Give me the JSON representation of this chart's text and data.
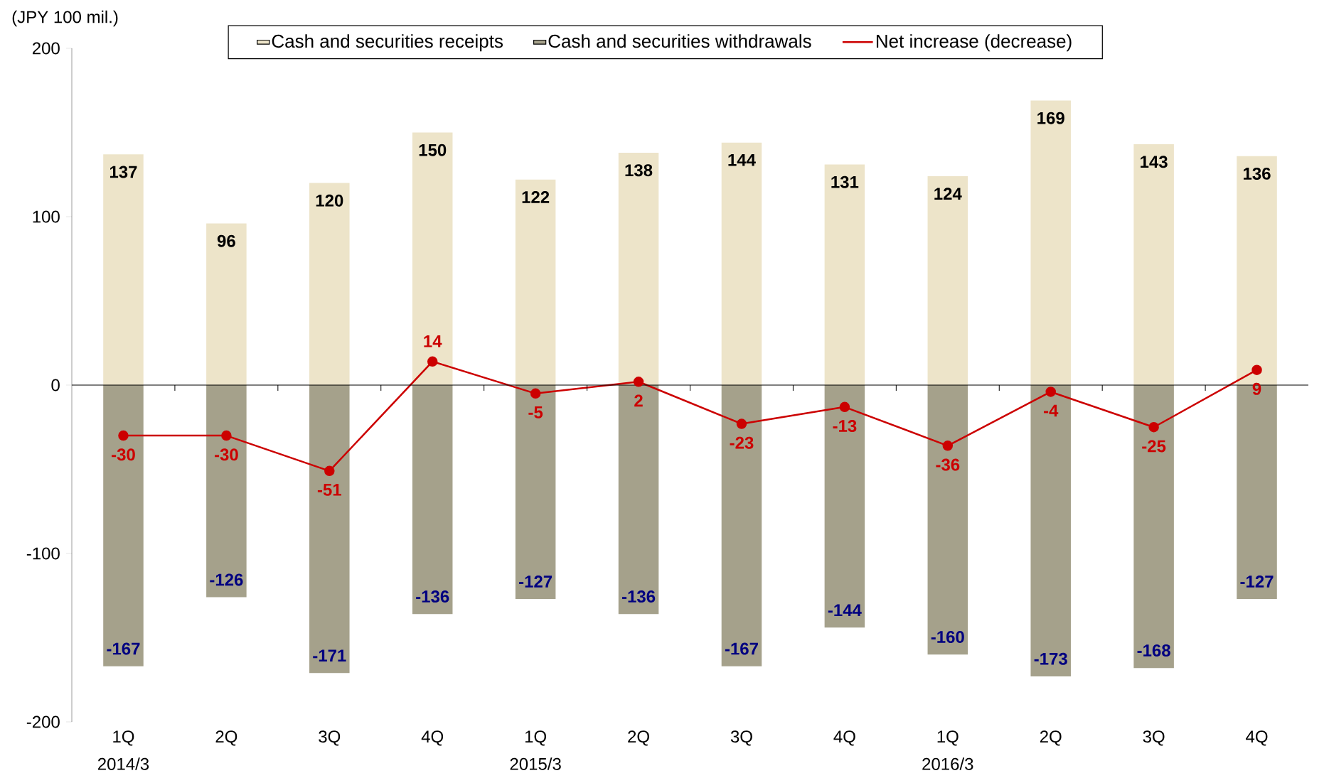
{
  "chart_data": {
    "type": "bar",
    "ylabel": "(JPY 100 mil.)",
    "categories": [
      "1Q",
      "2Q",
      "3Q",
      "4Q",
      "1Q",
      "2Q",
      "3Q",
      "4Q",
      "1Q",
      "2Q",
      "3Q",
      "4Q"
    ],
    "series": [
      {
        "name": "Cash and securities receipts",
        "type": "bar",
        "color": "#ede4c9",
        "values": [
          137,
          96,
          120,
          150,
          122,
          138,
          144,
          131,
          124,
          169,
          143,
          136
        ]
      },
      {
        "name": "Cash and securities withdrawals",
        "type": "bar",
        "color": "#a5a18b",
        "values": [
          -167,
          -126,
          -171,
          -136,
          -127,
          -136,
          -167,
          -144,
          -160,
          -173,
          -168,
          -127
        ]
      },
      {
        "name": "Net increase (decrease)",
        "type": "line",
        "color": "#cc0000",
        "marker": "circle",
        "values": [
          -30,
          -30,
          -51,
          14,
          -5,
          2,
          -23,
          -13,
          -36,
          -4,
          -25,
          9
        ]
      }
    ],
    "ylim": [
      -200,
      200
    ],
    "yticks": [
      -200,
      -100,
      0,
      100,
      200
    ],
    "data_labels": true,
    "legend": "top",
    "stacked": true,
    "annotations": [
      "2014/3",
      "2015/3",
      "2016/3"
    ]
  }
}
